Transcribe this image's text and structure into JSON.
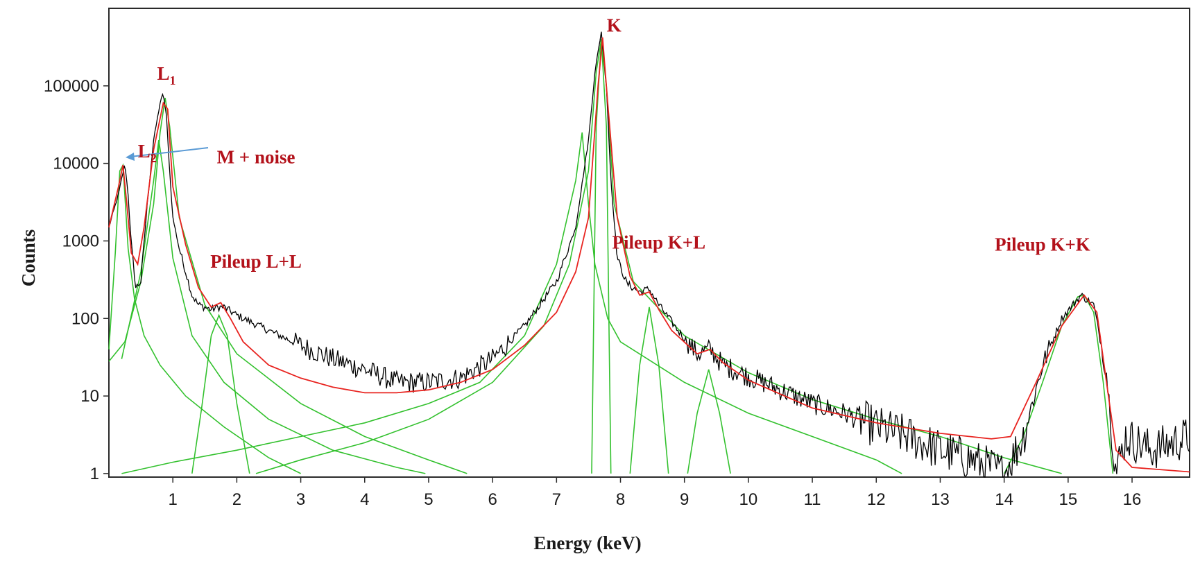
{
  "chart_data": {
    "type": "line",
    "xlabel": "Energy (keV)",
    "ylabel": "Counts",
    "y_scale": "log",
    "xlim": [
      0,
      16.9
    ],
    "ylim": [
      0.9,
      1000000
    ],
    "x_ticks": [
      "1",
      "2",
      "3",
      "4",
      "5",
      "6",
      "7",
      "8",
      "9",
      "10",
      "11",
      "12",
      "13",
      "14",
      "15",
      "16"
    ],
    "y_ticks": [
      "1",
      "10",
      "100",
      "1000",
      "10000",
      "100000"
    ],
    "grid": false,
    "legend": "none",
    "annotations": [
      {
        "main": "L",
        "sub": "1",
        "x": 0.9,
        "y": 120000,
        "color": "#b3121b"
      },
      {
        "main": "L",
        "sub": "2",
        "x": 0.6,
        "y": 12000,
        "color": "#b3121b"
      },
      {
        "main": "M + noise",
        "sub": "",
        "x": 2.3,
        "y": 10000,
        "color": "#b3121b"
      },
      {
        "main": "K",
        "sub": "",
        "x": 7.9,
        "y": 500000,
        "color": "#b3121b"
      },
      {
        "main": "Pileup L+L",
        "sub": "",
        "x": 2.3,
        "y": 450,
        "color": "#b3121b"
      },
      {
        "main": "Pileup K+L",
        "sub": "",
        "x": 8.6,
        "y": 800,
        "color": "#b3121b"
      },
      {
        "main": "Pileup K+K",
        "sub": "",
        "x": 14.6,
        "y": 750,
        "color": "#b3121b"
      }
    ],
    "colors": {
      "measured": "#000000",
      "fit_total": "#e8231f",
      "components": "#33c12e",
      "arrow": "#5b9bd5"
    },
    "series": [
      {
        "role": "measured",
        "x": [
          0,
          0.15,
          0.25,
          0.3,
          0.35,
          0.42,
          0.5,
          0.6,
          0.7,
          0.8,
          0.85,
          0.9,
          0.95,
          1.0,
          1.1,
          1.2,
          1.3,
          1.4,
          1.6,
          1.7,
          1.8,
          2.0,
          2.5,
          3.0,
          3.5,
          4.0,
          4.5,
          5.0,
          5.5,
          6.0,
          6.5,
          7.0,
          7.3,
          7.5,
          7.6,
          7.7,
          7.78,
          7.85,
          7.95,
          8.1,
          8.3,
          8.45,
          8.6,
          8.9,
          9.2,
          9.4,
          9.6,
          10.0,
          10.5,
          11.0,
          11.5,
          12.0,
          12.5,
          13.0,
          13.5,
          14.0,
          14.3,
          14.6,
          14.9,
          15.2,
          15.4,
          15.6,
          15.75,
          15.9,
          16.3,
          16.9
        ],
        "y": [
          1500,
          4000,
          10000,
          4000,
          900,
          250,
          300,
          3000,
          20000,
          60000,
          80000,
          40000,
          8000,
          2000,
          800,
          400,
          200,
          150,
          130,
          140,
          140,
          110,
          70,
          45,
          30,
          22,
          15,
          15,
          17,
          30,
          80,
          300,
          1500,
          20000,
          150000,
          500000,
          100000,
          6000,
          600,
          280,
          220,
          240,
          150,
          70,
          35,
          40,
          25,
          18,
          12,
          8,
          6,
          4,
          3,
          2,
          1.5,
          1,
          3,
          25,
          100,
          200,
          150,
          20,
          1,
          3,
          2,
          3
        ]
      },
      {
        "role": "fit_total",
        "x": [
          0,
          0.15,
          0.22,
          0.28,
          0.35,
          0.45,
          0.55,
          0.7,
          0.85,
          0.92,
          1.0,
          1.2,
          1.4,
          1.6,
          1.75,
          1.9,
          2.1,
          2.5,
          3.0,
          3.5,
          4.0,
          4.5,
          5.0,
          5.5,
          6.0,
          6.5,
          7.0,
          7.3,
          7.5,
          7.65,
          7.72,
          7.8,
          7.95,
          8.15,
          8.3,
          8.45,
          8.6,
          8.8,
          9.2,
          9.4,
          9.6,
          10.0,
          11.0,
          12.0,
          13.0,
          13.8,
          14.1,
          14.5,
          14.9,
          15.25,
          15.45,
          15.6,
          15.75,
          16.0,
          16.9
        ],
        "y": [
          1500,
          5000,
          9500,
          3000,
          700,
          500,
          1500,
          15000,
          60000,
          50000,
          5000,
          900,
          250,
          140,
          160,
          100,
          50,
          25,
          17,
          13,
          11,
          11,
          12,
          15,
          22,
          45,
          120,
          400,
          2000,
          100000,
          420000,
          60000,
          2000,
          350,
          200,
          220,
          130,
          70,
          35,
          40,
          27,
          16,
          7,
          4.5,
          3.3,
          2.8,
          3,
          15,
          80,
          200,
          120,
          15,
          2,
          1.2,
          1.05
        ]
      }
    ],
    "components": [
      {
        "x": [
          0,
          0.1,
          0.17,
          0.22,
          0.3,
          0.4,
          0.55,
          0.8,
          1.2,
          1.8,
          2.5,
          3.0
        ],
        "y": [
          40,
          700,
          8000,
          9500,
          800,
          180,
          60,
          25,
          10,
          4,
          1.6,
          1
        ]
      },
      {
        "x": [
          0,
          0.25,
          0.5,
          0.7,
          0.8,
          0.88,
          0.95,
          1.1,
          1.5,
          2.0,
          3.0,
          4.0,
          5.0,
          5.6
        ],
        "y": [
          28,
          50,
          300,
          3000,
          25000,
          70000,
          30000,
          2000,
          150,
          35,
          8,
          3,
          1.5,
          1
        ]
      },
      {
        "x": [
          0.2,
          0.5,
          0.7,
          0.78,
          0.85,
          1.0,
          1.3,
          1.8,
          2.5,
          3.5,
          4.5,
          4.95
        ],
        "y": [
          30,
          400,
          6000,
          20000,
          8000,
          600,
          60,
          15,
          5,
          2,
          1.2,
          1
        ]
      },
      {
        "x": [
          1.3,
          1.45,
          1.6,
          1.72,
          1.85,
          2.0,
          2.2
        ],
        "y": [
          1,
          7,
          60,
          110,
          60,
          8,
          1
        ]
      },
      {
        "x": [
          0.2,
          1.0,
          2.0,
          3.0,
          4.0,
          5.0,
          5.8,
          6.5,
          7.0,
          7.3,
          7.4,
          7.5,
          7.6,
          7.8,
          8.0,
          9.0,
          10.0,
          11.0,
          12.0,
          12.4
        ],
        "y": [
          1,
          1.4,
          2,
          3,
          4.5,
          8,
          15,
          60,
          500,
          6000,
          25000,
          3000,
          500,
          100,
          50,
          15,
          6,
          3,
          1.5,
          1
        ]
      },
      {
        "x": [
          2.3,
          3.0,
          4.0,
          5.0,
          6.0,
          6.8,
          7.2,
          7.5,
          7.62,
          7.7,
          7.78,
          7.9,
          8.2,
          9.0,
          10.0,
          11.0,
          12.0,
          13.0,
          14.0,
          14.9
        ],
        "y": [
          1,
          1.5,
          2.5,
          5,
          15,
          80,
          500,
          8000,
          150000,
          400000,
          100000,
          3000,
          300,
          60,
          20,
          9,
          5,
          3,
          1.6,
          1
        ]
      },
      {
        "x": [
          7.55,
          7.62,
          7.7,
          7.78,
          7.85
        ],
        "y": [
          1,
          30000,
          400000,
          30000,
          1
        ]
      },
      {
        "x": [
          8.15,
          8.3,
          8.45,
          8.6,
          8.75
        ],
        "y": [
          1,
          25,
          140,
          25,
          1
        ]
      },
      {
        "x": [
          9.05,
          9.2,
          9.38,
          9.55,
          9.72
        ],
        "y": [
          1,
          6,
          22,
          6,
          1
        ]
      },
      {
        "x": [
          14.0,
          14.3,
          14.6,
          14.9,
          15.15,
          15.25,
          15.4,
          15.55,
          15.7
        ],
        "y": [
          1,
          3,
          15,
          80,
          190,
          200,
          120,
          15,
          1
        ]
      }
    ]
  }
}
